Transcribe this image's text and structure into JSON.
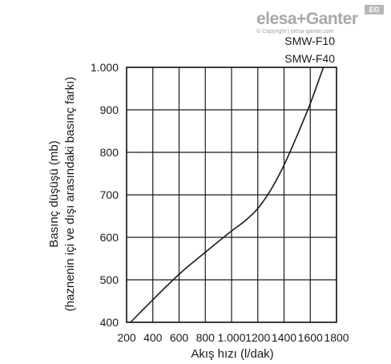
{
  "logo": {
    "text": "elesa+Ganter",
    "badge": "EG",
    "copyright": "© Copyright | elesa-ganter.com"
  },
  "chart_data": {
    "type": "line",
    "title": "",
    "xlabel": "Akış hızı (l/dak)",
    "ylabel_line1": "Basınç düşüşü (mb)",
    "ylabel_line2": "(haznenin içi ve dışı arasındaki basınç farkı)",
    "xlim": [
      200,
      1800
    ],
    "ylim": [
      400,
      1000
    ],
    "x_ticks": [
      200,
      400,
      600,
      800,
      1000,
      1200,
      1400,
      1600,
      1800
    ],
    "x_tick_labels": [
      "200",
      "400",
      "600",
      "800",
      "1.000",
      "1200",
      "1400",
      "1600",
      "1800"
    ],
    "y_ticks": [
      400,
      500,
      600,
      700,
      800,
      900,
      1000
    ],
    "y_tick_labels": [
      "400",
      "500",
      "600",
      "700",
      "800",
      "900",
      "1.000"
    ],
    "grid": true,
    "series_labels": [
      "SMW-F10",
      "SMW-F40"
    ],
    "series": [
      {
        "x": [
          230,
          400,
          600,
          800,
          1000,
          1100,
          1200,
          1300,
          1400,
          1500,
          1600,
          1700
        ],
        "y": [
          400,
          453,
          513,
          565,
          615,
          638,
          668,
          712,
          770,
          840,
          915,
          1000
        ]
      }
    ]
  }
}
